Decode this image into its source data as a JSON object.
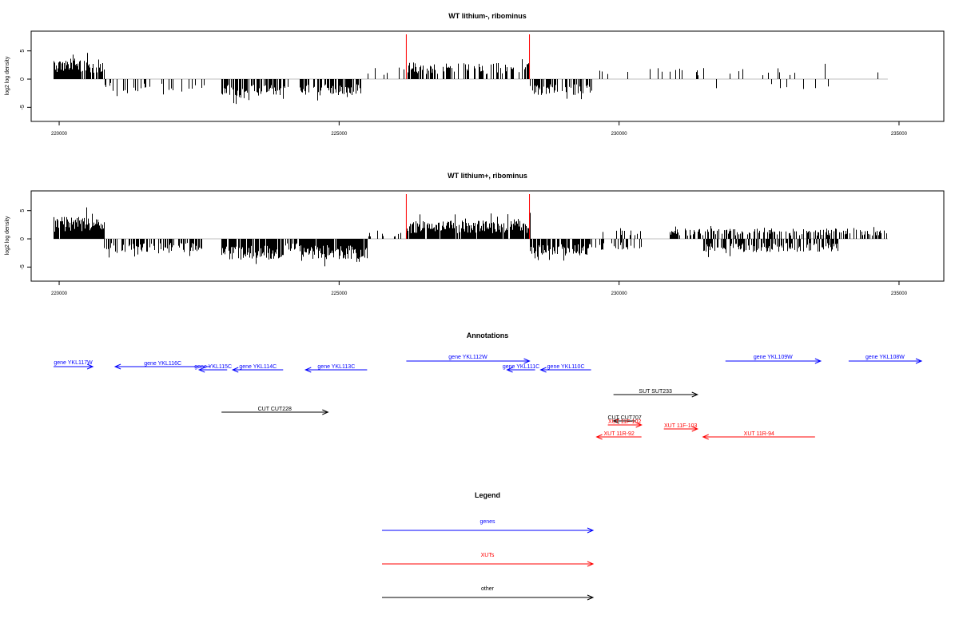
{
  "chart_data": [
    {
      "type": "bar",
      "title": "WT lithium-, ribominus",
      "ylabel": "log2 log density",
      "xlim": [
        219500,
        235800
      ],
      "ylim": [
        -7.5,
        8.5
      ],
      "xticks": [
        220000,
        225000,
        230000,
        235000
      ],
      "yticks": [
        -5,
        0,
        5
      ],
      "markers": [
        226200,
        228400
      ],
      "segments": [
        {
          "x0": 219900,
          "x1": 220800,
          "sign": 1,
          "amp": 2.8,
          "density": 0.9
        },
        {
          "x0": 220800,
          "x1": 222600,
          "sign": -1,
          "amp": 1.6,
          "density": 0.22
        },
        {
          "x0": 222900,
          "x1": 224000,
          "sign": -1,
          "amp": 2.4,
          "density": 0.7
        },
        {
          "x0": 224000,
          "x1": 224300,
          "sign": -1,
          "amp": 1.2,
          "density": 0.25
        },
        {
          "x0": 224300,
          "x1": 225400,
          "sign": -1,
          "amp": 2.3,
          "density": 0.7
        },
        {
          "x0": 225500,
          "x1": 226200,
          "sign": 1,
          "amp": 1.4,
          "density": 0.15
        },
        {
          "x0": 226200,
          "x1": 228400,
          "sign": 1,
          "amp": 2.2,
          "density": 0.5
        },
        {
          "x0": 228400,
          "x1": 229500,
          "sign": -1,
          "amp": 2.2,
          "density": 0.5
        },
        {
          "x0": 229500,
          "x1": 230400,
          "sign": 1,
          "amp": 1.2,
          "density": 0.04
        },
        {
          "x0": 230400,
          "x1": 234800,
          "sign": 1,
          "amp": 1.6,
          "density": 0.07
        },
        {
          "x0": 231500,
          "x1": 233800,
          "sign": -1,
          "amp": 1.4,
          "density": 0.05
        }
      ]
    },
    {
      "type": "bar",
      "title": "WT lithium+, ribominus",
      "ylabel": "log2 log density",
      "xlim": [
        219500,
        235800
      ],
      "ylim": [
        -7.5,
        8.5
      ],
      "xticks": [
        220000,
        225000,
        230000,
        235000
      ],
      "yticks": [
        -5,
        0,
        5
      ],
      "markers": [
        226200,
        228400
      ],
      "segments": [
        {
          "x0": 219900,
          "x1": 220800,
          "sign": 1,
          "amp": 3.0,
          "density": 0.95
        },
        {
          "x0": 220800,
          "x1": 222600,
          "sign": -1,
          "amp": 1.8,
          "density": 0.55
        },
        {
          "x0": 222900,
          "x1": 224000,
          "sign": -1,
          "amp": 3.0,
          "density": 0.9
        },
        {
          "x0": 224000,
          "x1": 224300,
          "sign": -1,
          "amp": 1.5,
          "density": 0.5
        },
        {
          "x0": 224300,
          "x1": 225500,
          "sign": -1,
          "amp": 2.8,
          "density": 0.9
        },
        {
          "x0": 225500,
          "x1": 226200,
          "sign": 1,
          "amp": 1.0,
          "density": 0.15
        },
        {
          "x0": 226200,
          "x1": 228400,
          "sign": 1,
          "amp": 2.5,
          "density": 0.9
        },
        {
          "x0": 228400,
          "x1": 229500,
          "sign": -1,
          "amp": 2.3,
          "density": 0.8
        },
        {
          "x0": 229500,
          "x1": 230400,
          "sign": -1,
          "amp": 1.5,
          "density": 0.3
        },
        {
          "x0": 229700,
          "x1": 230400,
          "sign": 1,
          "amp": 1.5,
          "density": 0.3
        },
        {
          "x0": 230900,
          "x1": 234800,
          "sign": 1,
          "amp": 1.4,
          "density": 0.5
        },
        {
          "x0": 231500,
          "x1": 233900,
          "sign": -1,
          "amp": 1.8,
          "density": 0.6
        }
      ]
    }
  ],
  "annotations": {
    "title": "Annotations",
    "features": [
      {
        "label": "gene YKL117W",
        "start": 219900,
        "end": 220600,
        "strand": "+",
        "kind": "genes",
        "label_above": true
      },
      {
        "label": "gene YKL116C",
        "start": 221000,
        "end": 222700,
        "strand": "-",
        "kind": "genes"
      },
      {
        "label": "gene YKL115C",
        "start": 222500,
        "end": 223000,
        "strand": "-",
        "kind": "genes"
      },
      {
        "label": "gene YKL114C",
        "start": 223100,
        "end": 224000,
        "strand": "-",
        "kind": "genes"
      },
      {
        "label": "gene YKL113C",
        "start": 224400,
        "end": 225500,
        "strand": "-",
        "kind": "genes"
      },
      {
        "label": "gene YKL112W",
        "start": 226200,
        "end": 228400,
        "strand": "+",
        "kind": "genes",
        "label_above": true
      },
      {
        "label": "gene YKL111C",
        "start": 228000,
        "end": 228500,
        "strand": "-",
        "kind": "genes"
      },
      {
        "label": "gene YKL110C",
        "start": 228600,
        "end": 229500,
        "strand": "-",
        "kind": "genes"
      },
      {
        "label": "gene YKL109W",
        "start": 231900,
        "end": 233600,
        "strand": "+",
        "kind": "genes",
        "label_above": true
      },
      {
        "label": "gene YKL108W",
        "start": 234100,
        "end": 235400,
        "strand": "+",
        "kind": "genes",
        "label_above": true
      },
      {
        "label": "SUT SUT233",
        "start": 229900,
        "end": 231400,
        "strand": "+",
        "kind": "other"
      },
      {
        "label": "CUT CUT228",
        "start": 222900,
        "end": 224800,
        "strand": "+",
        "kind": "other"
      },
      {
        "label": "CUT CUT707",
        "start": 229900,
        "end": 230300,
        "strand": "-",
        "kind": "other"
      },
      {
        "label": "XUT 11F-102",
        "start": 229800,
        "end": 230400,
        "strand": "+",
        "kind": "XUTs"
      },
      {
        "label": "XUT 11F-103",
        "start": 230800,
        "end": 231400,
        "strand": "+",
        "kind": "XUTs"
      },
      {
        "label": "XUT 11R-92",
        "start": 229600,
        "end": 230400,
        "strand": "-",
        "kind": "XUTs"
      },
      {
        "label": "XUT 11R-94",
        "start": 231500,
        "end": 233500,
        "strand": "-",
        "kind": "XUTs"
      }
    ]
  },
  "legend": {
    "title": "Legend",
    "items": [
      {
        "label": "genes",
        "color": "#0000ff"
      },
      {
        "label": "XUTs",
        "color": "#ff0000"
      },
      {
        "label": "other",
        "color": "#000000"
      }
    ]
  },
  "colors": {
    "genes": "#0000ff",
    "XUTs": "#ff0000",
    "other": "#000000",
    "marker": "#ff0000",
    "baseline": "#bfbfbf"
  }
}
